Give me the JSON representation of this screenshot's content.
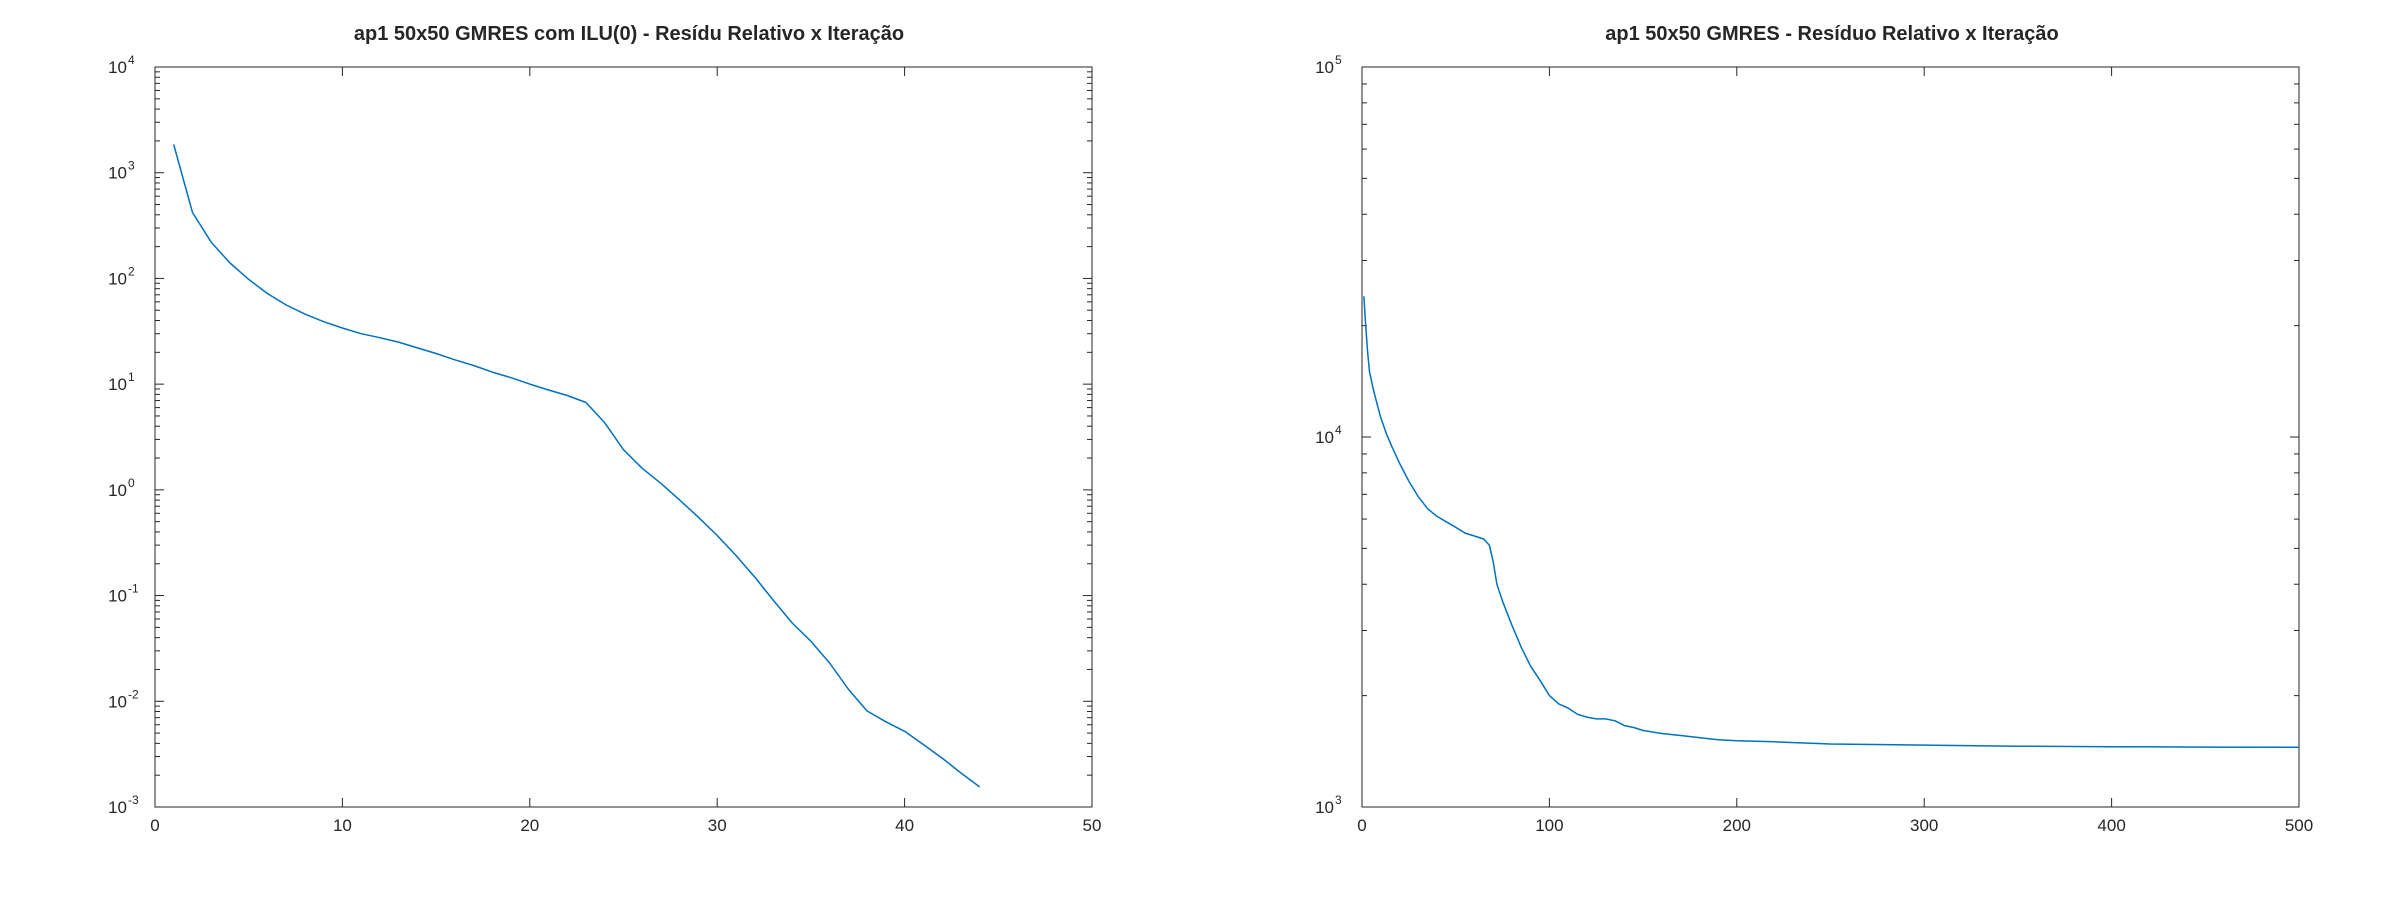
{
  "chart_data": [
    {
      "type": "line",
      "title": "ap1 50x50 GMRES com ILU(0) - Resídu Relativo x Iteração",
      "xlabel": "",
      "ylabel": "",
      "xscale": "linear",
      "yscale": "log",
      "xlim": [
        0,
        50
      ],
      "ylim": [
        0.001,
        10000
      ],
      "xticks": [
        0,
        10,
        20,
        30,
        40,
        50
      ],
      "yticks": [
        {
          "base": "10",
          "exp": "-3",
          "value": 0.001
        },
        {
          "base": "10",
          "exp": "-2",
          "value": 0.01
        },
        {
          "base": "10",
          "exp": "-1",
          "value": 0.1
        },
        {
          "base": "10",
          "exp": "0",
          "value": 1
        },
        {
          "base": "10",
          "exp": "1",
          "value": 10
        },
        {
          "base": "10",
          "exp": "2",
          "value": 100
        },
        {
          "base": "10",
          "exp": "3",
          "value": 1000
        },
        {
          "base": "10",
          "exp": "4",
          "value": 10000
        }
      ],
      "grid": false,
      "color": "#0072bd",
      "x": [
        1,
        2,
        3,
        4,
        5,
        6,
        7,
        8,
        9,
        10,
        11,
        12,
        13,
        14,
        15,
        16,
        17,
        18,
        19,
        20,
        21,
        22,
        23,
        24,
        25,
        26,
        27,
        28,
        29,
        30,
        31,
        32,
        33,
        34,
        35,
        36,
        37,
        38,
        39,
        40,
        41,
        42,
        43,
        44
      ],
      "y": [
        1850,
        420,
        220,
        140,
        98,
        72,
        56,
        46,
        39,
        34,
        30,
        27.5,
        25,
        22,
        19.5,
        17,
        15,
        13,
        11.5,
        10,
        8.8,
        7.8,
        6.7,
        4.3,
        2.4,
        1.6,
        1.15,
        0.8,
        0.55,
        0.37,
        0.24,
        0.15,
        0.09,
        0.055,
        0.037,
        0.023,
        0.013,
        0.0081,
        0.0064,
        0.0052,
        0.0039,
        0.0029,
        0.0021,
        0.00155
      ]
    },
    {
      "type": "line",
      "title": "ap1 50x50 GMRES - Resíduo Relativo x Iteração",
      "xlabel": "",
      "ylabel": "",
      "xscale": "linear",
      "yscale": "log",
      "xlim": [
        0,
        500
      ],
      "ylim": [
        1000,
        100000
      ],
      "xticks": [
        0,
        100,
        200,
        300,
        400,
        500
      ],
      "yticks": [
        {
          "base": "10",
          "exp": "3",
          "value": 1000
        },
        {
          "base": "10",
          "exp": "4",
          "value": 10000
        },
        {
          "base": "10",
          "exp": "5",
          "value": 100000
        }
      ],
      "grid": false,
      "color": "#0072bd",
      "x": [
        1,
        2,
        3,
        4,
        6,
        8,
        10,
        13,
        16,
        20,
        25,
        30,
        35,
        40,
        45,
        50,
        55,
        60,
        65,
        68,
        70,
        72,
        75,
        80,
        85,
        90,
        95,
        100,
        105,
        110,
        115,
        120,
        125,
        130,
        135,
        138,
        140,
        145,
        150,
        160,
        170,
        180,
        190,
        200,
        220,
        250,
        300,
        350,
        400,
        450,
        500
      ],
      "y": [
        24000,
        20000,
        17000,
        15000,
        13500,
        12300,
        11300,
        10200,
        9400,
        8500,
        7600,
        6900,
        6400,
        6100,
        5900,
        5700,
        5500,
        5400,
        5300,
        5100,
        4600,
        4000,
        3600,
        3100,
        2700,
        2400,
        2200,
        2000,
        1900,
        1850,
        1780,
        1750,
        1730,
        1730,
        1710,
        1680,
        1660,
        1640,
        1610,
        1580,
        1560,
        1540,
        1520,
        1510,
        1500,
        1480,
        1470,
        1460,
        1455,
        1452,
        1450
      ]
    }
  ]
}
